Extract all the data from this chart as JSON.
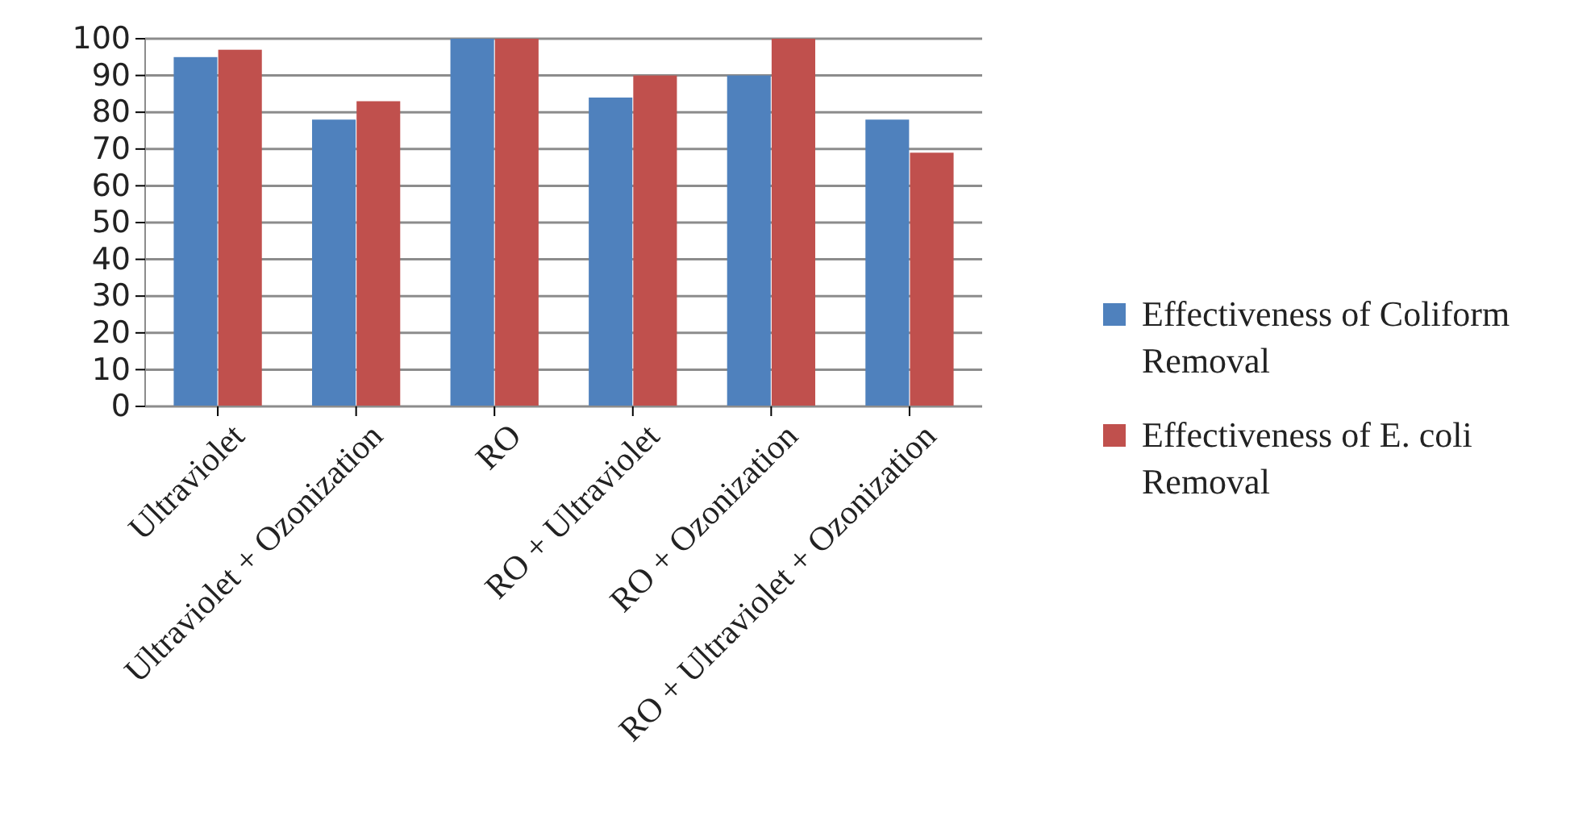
{
  "chart_data": {
    "type": "bar",
    "categories": [
      "Ultraviolet",
      "Ultraviolet + Ozonization",
      "RO",
      "RO + Ultraviolet",
      "RO + Ozonization",
      "RO + Ultraviolet + Ozonization"
    ],
    "series": [
      {
        "name": "Effectiveness of Coliform Removal",
        "color": "#4f81bd",
        "values": [
          95,
          78,
          100,
          84,
          90,
          78
        ]
      },
      {
        "name": "Effectiveness of E. coli Removal",
        "color": "#c0504d",
        "values": [
          97,
          83,
          100,
          90,
          100,
          69
        ]
      }
    ],
    "ylim": [
      0,
      100
    ],
    "yticks": [
      0,
      10,
      20,
      30,
      40,
      50,
      60,
      70,
      80,
      90,
      100
    ],
    "grid": "y",
    "legend": "right"
  }
}
